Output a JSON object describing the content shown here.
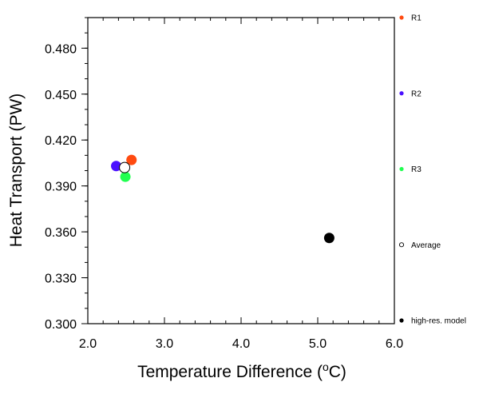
{
  "chart_data": {
    "type": "scatter",
    "title": "",
    "xlabel": "Temperature Difference (",
    "xlabel_sup": "o",
    "xlabel_suffix": "C)",
    "ylabel": "Heat Transport (PW)",
    "xlim": [
      2.0,
      6.0
    ],
    "ylim": [
      0.3,
      0.5
    ],
    "x_ticks": [
      2.0,
      3.0,
      4.0,
      5.0,
      6.0
    ],
    "x_tick_labels": [
      "2.0",
      "3.0",
      "4.0",
      "5.0",
      "6.0"
    ],
    "y_ticks": [
      0.3,
      0.33,
      0.36,
      0.39,
      0.42,
      0.45,
      0.48
    ],
    "y_tick_labels": [
      "0.300",
      "0.330",
      "0.360",
      "0.390",
      "0.420",
      "0.450",
      "0.480"
    ],
    "grid": false,
    "legend_placement": "right",
    "series": [
      {
        "name": "R1",
        "color": "#ff4a10",
        "fill": true,
        "points": [
          {
            "x": 2.57,
            "y": 0.407
          }
        ]
      },
      {
        "name": "R2",
        "color": "#4a10ff",
        "fill": true,
        "points": [
          {
            "x": 2.37,
            "y": 0.403
          }
        ]
      },
      {
        "name": "R3",
        "color": "#20ff50",
        "fill": true,
        "points": [
          {
            "x": 2.49,
            "y": 0.396
          }
        ]
      },
      {
        "name": "Average",
        "color": "#000000",
        "fill": false,
        "points": [
          {
            "x": 2.48,
            "y": 0.402
          }
        ]
      },
      {
        "name": "high-res. model",
        "color": "#000000",
        "fill": true,
        "points": [
          {
            "x": 5.15,
            "y": 0.356
          }
        ]
      }
    ]
  }
}
